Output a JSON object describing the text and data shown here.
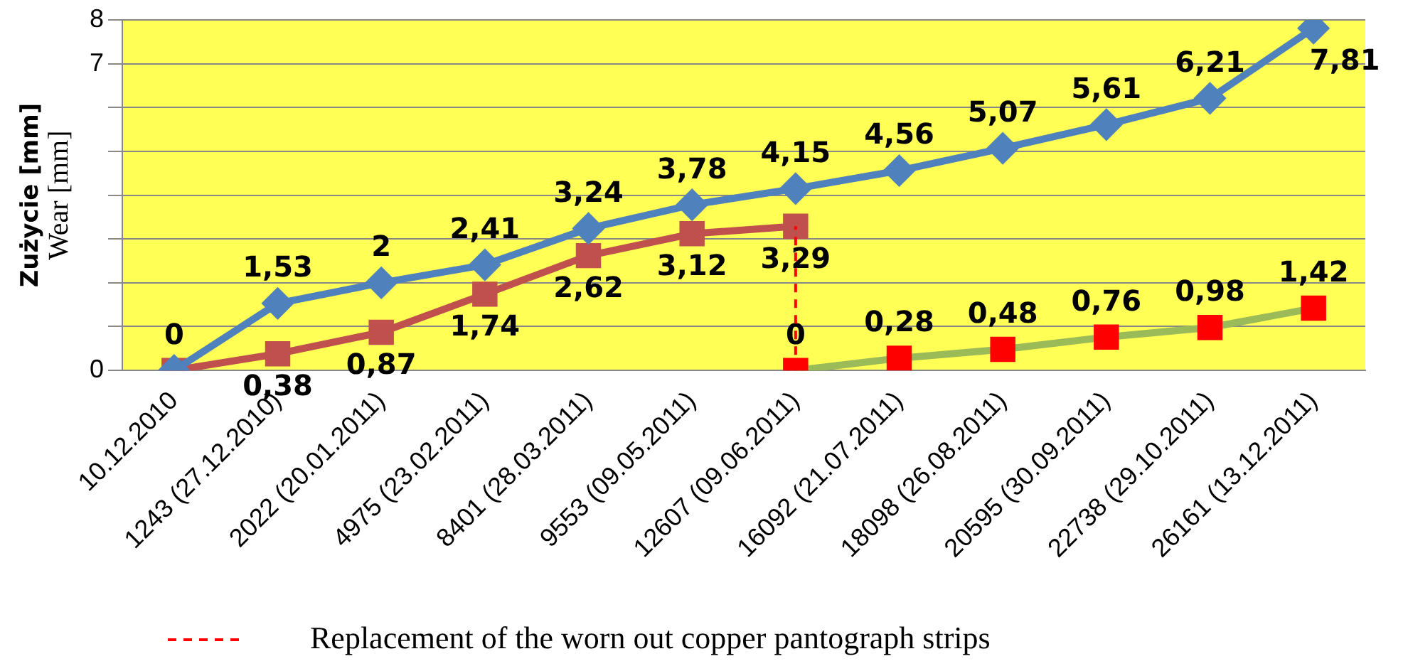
{
  "chart_data": {
    "type": "line",
    "ylabel": "Zużycie [mm]\nWear [mm]",
    "categories": [
      "10.12.2010",
      "1243 (27.12.2010)",
      "2022 (20.01.2011)",
      "4975 (23.02.2011)",
      "8401 (28.03.2011)",
      "9553 (09.05.2011)",
      "12607 (09.06.2011)",
      "16092 (21.07.2011)",
      "18098 (26.08.2011)",
      "20595 (30.09.2011)",
      "22738 (29.10.2011)",
      "26161 (13.12.2011)"
    ],
    "series": [
      {
        "color": "#4f81bd",
        "marker": "diamond",
        "values": [
          0,
          1.53,
          2,
          2.41,
          3.24,
          3.78,
          4.15,
          4.56,
          5.07,
          5.61,
          6.21,
          7.81
        ],
        "value_labels": [
          "0",
          "1,53",
          "2",
          "2,41",
          "3,24",
          "3,78",
          "4,15",
          "4,56",
          "5,07",
          "5,61",
          "6,21",
          "7,81"
        ]
      },
      {
        "color": "#c0504d",
        "marker": "square",
        "values": [
          0,
          0.38,
          0.87,
          1.74,
          2.62,
          3.12,
          3.29,
          null,
          null,
          null,
          null,
          null
        ],
        "value_labels": [
          null,
          "0,38",
          "0,87",
          "1,74",
          "2,62",
          "3,12",
          "3,29",
          null,
          null,
          null,
          null,
          null
        ]
      },
      {
        "color": "#9bbb59",
        "colors": [
          null,
          null,
          null,
          null,
          null,
          null,
          "#ff0000",
          "#ff0000",
          "#ff0000",
          "#ff0000",
          "#ff0000",
          "#ff0000"
        ],
        "marker": "square",
        "values": [
          null,
          null,
          null,
          null,
          null,
          null,
          0,
          0.28,
          0.48,
          0.76,
          0.98,
          1.42
        ],
        "value_labels": [
          null,
          null,
          null,
          null,
          null,
          null,
          "0",
          "0,28",
          "0,48",
          "0,76",
          "0,98",
          "1,42"
        ]
      }
    ],
    "ylim": [
      0,
      8
    ],
    "yticks": [
      0,
      {
        "value": 1,
        "label": null
      },
      {
        "value": 2,
        "label": null
      },
      {
        "value": 3,
        "label": null
      },
      {
        "value": 4,
        "label": null
      },
      {
        "value": 5,
        "label": null
      },
      {
        "value": 6,
        "label": null
      },
      7,
      8
    ],
    "grid": "y",
    "legend": "bottom",
    "ref_lines": [
      {
        "axis": "x",
        "value": "12607 (09.06.2011)",
        "label": "Replacement of the worn out copper pantograph strips",
        "color": "#ff0000",
        "line_style": "dashed"
      }
    ]
  }
}
